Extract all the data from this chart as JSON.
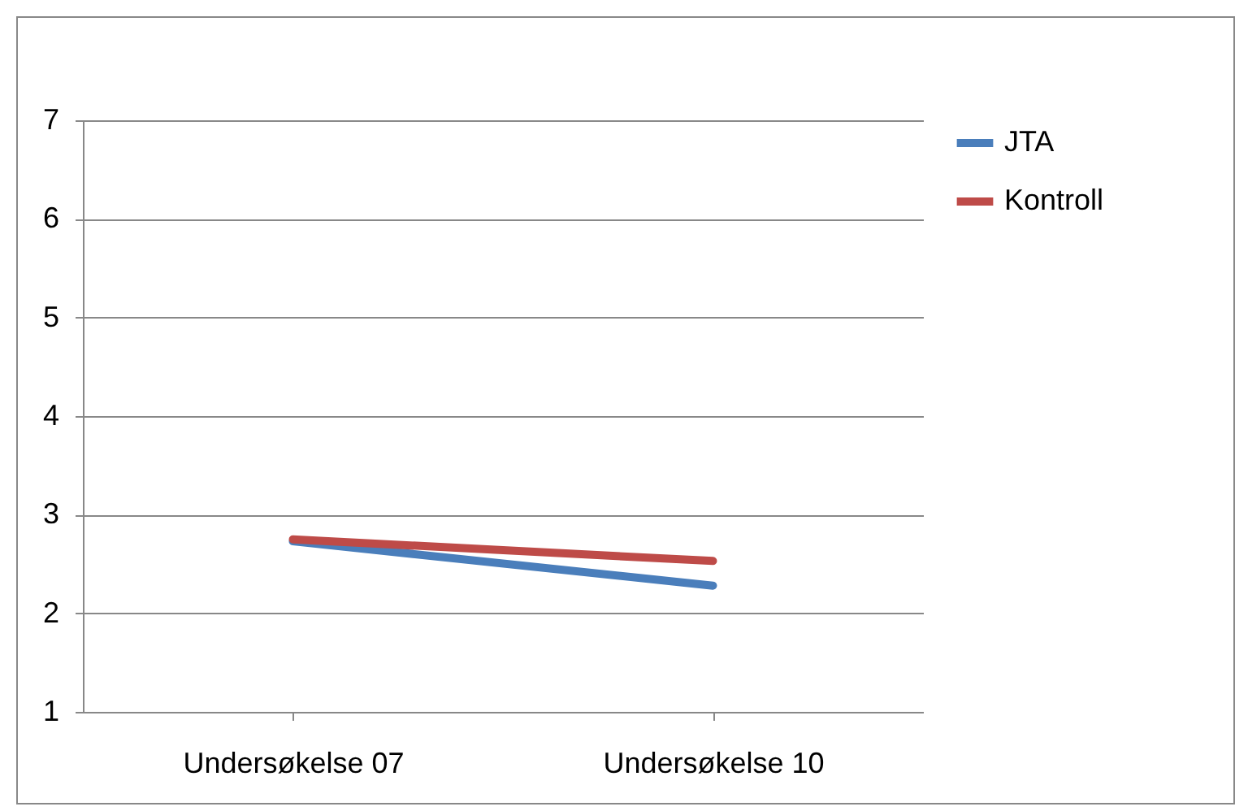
{
  "chart_data": {
    "type": "line",
    "categories": [
      "Undersøkelse 07",
      "Undersøkelse 10"
    ],
    "series": [
      {
        "name": "JTA",
        "color": "#4a7ebb",
        "values": [
          2.73,
          2.28
        ]
      },
      {
        "name": "Kontroll",
        "color": "#be4b48",
        "values": [
          2.75,
          2.53
        ]
      }
    ],
    "ylim": [
      1,
      7
    ],
    "yticks": [
      1,
      2,
      3,
      4,
      5,
      6,
      7
    ],
    "grid": "y",
    "legend": "right",
    "marker": "none"
  }
}
